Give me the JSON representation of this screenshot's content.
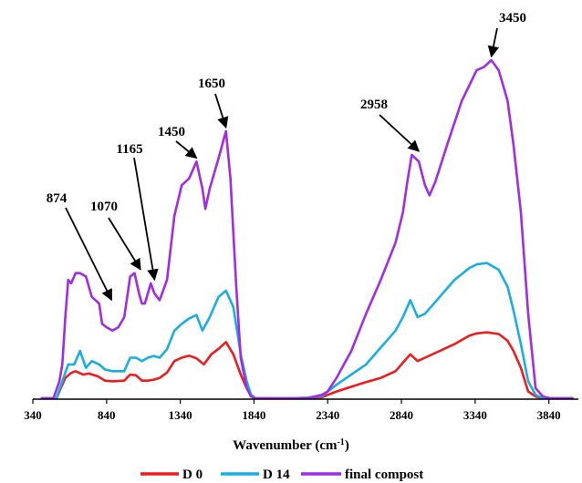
{
  "chart_data": {
    "type": "line",
    "title": "",
    "xlabel": "Wavenumber (cm",
    "xlabel_superscript": "-1",
    "xlabel_suffix": ")",
    "ylabel": "",
    "xlim": [
      340,
      4040
    ],
    "ylim": [
      0,
      100
    ],
    "x_ticks": [
      340,
      840,
      1340,
      1840,
      2340,
      2840,
      3340,
      3840
    ],
    "x_tick_labels": [
      "340",
      "840",
      "1340",
      "1840",
      "2340",
      "2840",
      "3340",
      "3840"
    ],
    "grid": false,
    "legend_position": "bottom",
    "colors": {
      "D 0": "#ee1c1c",
      "D 14": "#19aee3",
      "final compost": "#a02be8"
    },
    "series": [
      {
        "name": "D 0",
        "x": [
          400,
          500,
          530,
          560,
          600,
          630,
          680,
          720,
          780,
          830,
          880,
          960,
          1000,
          1040,
          1080,
          1120,
          1160,
          1200,
          1250,
          1300,
          1350,
          1400,
          1450,
          1500,
          1550,
          1600,
          1650,
          1700,
          1750,
          1790,
          1820,
          1850,
          1900,
          2000,
          2100,
          2200,
          2300,
          2340,
          2400,
          2500,
          2600,
          2700,
          2800,
          2850,
          2900,
          2950,
          3000,
          3100,
          3200,
          3300,
          3350,
          3420,
          3500,
          3560,
          3600,
          3650,
          3700,
          3750,
          3800,
          3850,
          4000
        ],
        "y": [
          0,
          0,
          3,
          6,
          7.5,
          8,
          7,
          7.3,
          6.5,
          5.2,
          5,
          5.2,
          7,
          6.8,
          5.2,
          5.2,
          5.5,
          6,
          7.6,
          11,
          12,
          12.6,
          11.8,
          10,
          13,
          14.6,
          16.6,
          13,
          7,
          3,
          1,
          0,
          0,
          0,
          0,
          0.1,
          0.3,
          1,
          2,
          3.4,
          4.8,
          6,
          8,
          10.5,
          13,
          11,
          12,
          14,
          16,
          18.5,
          19.2,
          19.5,
          19,
          17,
          14,
          9,
          2,
          0.5,
          0,
          0,
          0
        ]
      },
      {
        "name": "D 14",
        "x": [
          400,
          500,
          540,
          580,
          620,
          660,
          700,
          740,
          790,
          830,
          880,
          960,
          1000,
          1040,
          1080,
          1120,
          1160,
          1200,
          1250,
          1300,
          1350,
          1400,
          1450,
          1490,
          1540,
          1600,
          1650,
          1700,
          1750,
          1790,
          1820,
          1850,
          1900,
          2000,
          2100,
          2200,
          2300,
          2340,
          2400,
          2500,
          2600,
          2700,
          2800,
          2850,
          2900,
          2950,
          3000,
          3100,
          3200,
          3300,
          3350,
          3420,
          3500,
          3560,
          3600,
          3650,
          3700,
          3750,
          3800,
          3850,
          4000
        ],
        "y": [
          0,
          0,
          5,
          10,
          10,
          14,
          9,
          11,
          10,
          8.5,
          8,
          8,
          12,
          12,
          11,
          12,
          12.5,
          12,
          14.5,
          20,
          22,
          23.6,
          24.6,
          20,
          24,
          30,
          31.8,
          27,
          13,
          5,
          1,
          0,
          0,
          0,
          0,
          0.2,
          0.6,
          2,
          4,
          7,
          10,
          15,
          20,
          24,
          29,
          24,
          25,
          30,
          35,
          38.5,
          39.6,
          40,
          38,
          33,
          26,
          16,
          5,
          1,
          0,
          0,
          0
        ]
      },
      {
        "name": "final compost",
        "x": [
          400,
          480,
          520,
          540,
          560,
          580,
          600,
          630,
          660,
          700,
          740,
          790,
          810,
          840,
          880,
          920,
          960,
          1000,
          1030,
          1060,
          1080,
          1100,
          1140,
          1165,
          1200,
          1250,
          1300,
          1350,
          1400,
          1450,
          1490,
          1510,
          1540,
          1600,
          1650,
          1680,
          1720,
          1750,
          1790,
          1820,
          1850,
          1900,
          2000,
          2100,
          2200,
          2300,
          2340,
          2400,
          2500,
          2600,
          2700,
          2800,
          2850,
          2880,
          2910,
          2958,
          3000,
          3030,
          3070,
          3150,
          3250,
          3350,
          3400,
          3450,
          3500,
          3560,
          3600,
          3650,
          3700,
          3750,
          3800,
          3850,
          4000
        ],
        "y": [
          0,
          0,
          5,
          10,
          24,
          35,
          34,
          37,
          37,
          36,
          30,
          28,
          22,
          21,
          20,
          21,
          24,
          36,
          37,
          31,
          28,
          28,
          34,
          31,
          29,
          35,
          54,
          63,
          65,
          70,
          62,
          56,
          62,
          71,
          79,
          65,
          33,
          12,
          3,
          0.5,
          0,
          0,
          0,
          0,
          0,
          1,
          2,
          6,
          14,
          25,
          35,
          46,
          55,
          64,
          72,
          70,
          63,
          60,
          64,
          75,
          88,
          97,
          98,
          100,
          97,
          88,
          75,
          55,
          25,
          3,
          0.5,
          0,
          0
        ]
      }
    ],
    "annotations": [
      {
        "label": "874",
        "x": 874,
        "y": 28
      },
      {
        "label": "1070",
        "x": 1070,
        "y": 37
      },
      {
        "label": "1165",
        "x": 1165,
        "y": 34
      },
      {
        "label": "1450",
        "x": 1450,
        "y": 70
      },
      {
        "label": "1650",
        "x": 1650,
        "y": 79
      },
      {
        "label": "2958",
        "x": 2958,
        "y": 72
      },
      {
        "label": "3450",
        "x": 3450,
        "y": 100
      }
    ]
  }
}
